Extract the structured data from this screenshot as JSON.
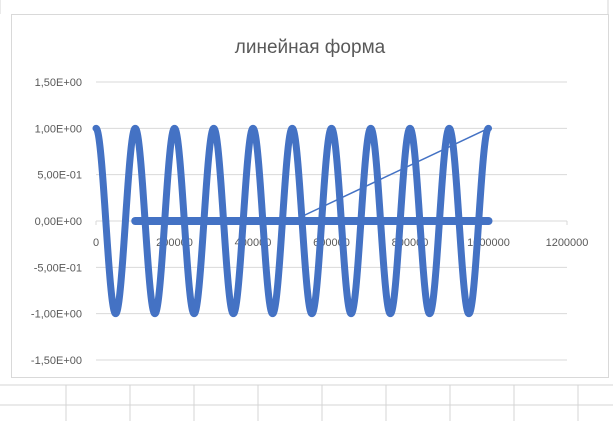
{
  "colors": {
    "series": "#4472c4",
    "gridline": "#d9d9d9",
    "text": "#595959",
    "sheet_grid": "#d4d4d4"
  },
  "chart_data": {
    "type": "scatter",
    "title": "линейная форма",
    "xlabel": "",
    "ylabel": "",
    "xlim": [
      0,
      1200000
    ],
    "ylim": [
      -1.5,
      1.5
    ],
    "x_ticks": [
      0,
      200000,
      400000,
      600000,
      800000,
      1000000,
      1200000
    ],
    "x_tick_labels": [
      "0",
      "200000",
      "400000",
      "600000",
      "800000",
      "1000000",
      "1200000"
    ],
    "y_ticks": [
      1.5,
      1.0,
      0.5,
      0.0,
      -0.5,
      -1.0,
      -1.5
    ],
    "y_tick_labels": [
      "1,50E+00",
      "1,00E+00",
      "5,00E-01",
      "0,00E+00",
      "-5,00E-01",
      "-1,00E+00",
      "-1,50E+00"
    ],
    "grid": true,
    "legend": "none",
    "series": [
      {
        "kind": "cosine",
        "x_start": 0,
        "x_end": 1000000,
        "cycles": 10,
        "amplitude": 1.0
      },
      {
        "kind": "zero_markers",
        "x_start": 100000,
        "x_end": 1000000,
        "y": 0.0
      },
      {
        "kind": "line",
        "points": [
          [
            500000,
            0.0
          ],
          [
            1000000,
            1.0
          ]
        ]
      }
    ]
  }
}
